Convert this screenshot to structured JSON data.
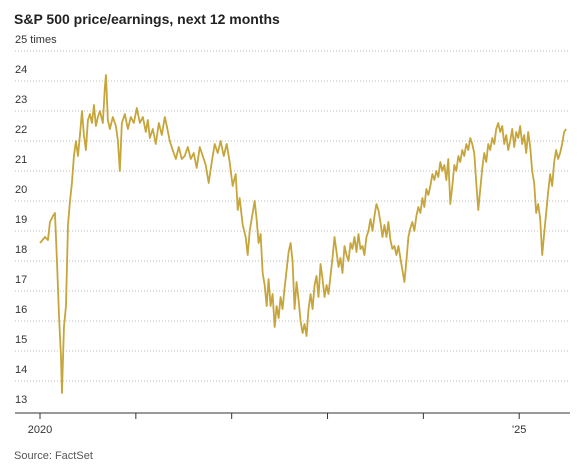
{
  "chart_data": {
    "type": "line",
    "title": "S&P 500 price/earnings, next 12 months",
    "source": "Source: FactSet",
    "xlim": [
      2020,
      2025.53
    ],
    "xticks": [
      2020,
      {
        "value": 2021,
        "label": null
      },
      {
        "value": 2022,
        "label": null
      },
      {
        "value": 2023,
        "label": null
      },
      {
        "value": 2024,
        "label": null
      },
      {
        "value": 2025,
        "label": "'25"
      }
    ],
    "ylim": [
      13,
      25
    ],
    "yticks": [
      13,
      14,
      15,
      16,
      17,
      18,
      19,
      20,
      21,
      22,
      23,
      24,
      {
        "value": 25,
        "label": "25 times"
      }
    ],
    "grid": true,
    "series": [
      {
        "name": null,
        "color": "#c6a53a",
        "x": [
          2020,
          2020.052,
          2020.083,
          2020.104,
          2020.135,
          2020.156,
          2020.177,
          2020.198,
          2020.219,
          2020.229,
          2020.25,
          2020.271,
          2020.292,
          2020.313,
          2020.333,
          2020.354,
          2020.375,
          2020.396,
          2020.417,
          2020.438,
          2020.458,
          2020.479,
          2020.5,
          2020.521,
          2020.542,
          2020.563,
          2020.583,
          2020.604,
          2020.625,
          2020.656,
          2020.677,
          2020.688,
          2020.708,
          2020.729,
          2020.76,
          2020.792,
          2020.813,
          2020.833,
          2020.854,
          2020.885,
          2020.917,
          2020.948,
          2020.979,
          2021.01,
          2021.042,
          2021.073,
          2021.104,
          2021.125,
          2021.146,
          2021.177,
          2021.208,
          2021.24,
          2021.271,
          2021.302,
          2021.323,
          2021.354,
          2021.385,
          2021.417,
          2021.448,
          2021.479,
          2021.51,
          2021.542,
          2021.573,
          2021.604,
          2021.635,
          2021.667,
          2021.698,
          2021.729,
          2021.76,
          2021.792,
          2021.823,
          2021.854,
          2021.885,
          2021.917,
          2021.948,
          2021.979,
          2022.01,
          2022.042,
          2022.063,
          2022.083,
          2022.115,
          2022.146,
          2022.167,
          2022.188,
          2022.219,
          2022.24,
          2022.26,
          2022.281,
          2022.302,
          2022.323,
          2022.344,
          2022.365,
          2022.385,
          2022.406,
          2022.427,
          2022.448,
          2022.469,
          2022.49,
          2022.51,
          2022.531,
          2022.552,
          2022.573,
          2022.594,
          2022.615,
          2022.635,
          2022.656,
          2022.677,
          2022.698,
          2022.719,
          2022.74,
          2022.76,
          2022.781,
          2022.802,
          2022.823,
          2022.844,
          2022.865,
          2022.885,
          2022.906,
          2022.927,
          2022.948,
          2022.969,
          2022.99,
          2023.01,
          2023.031,
          2023.052,
          2023.073,
          2023.094,
          2023.115,
          2023.135,
          2023.156,
          2023.177,
          2023.198,
          2023.219,
          2023.24,
          2023.26,
          2023.281,
          2023.302,
          2023.323,
          2023.344,
          2023.365,
          2023.385,
          2023.406,
          2023.427,
          2023.448,
          2023.469,
          2023.49,
          2023.51,
          2023.531,
          2023.552,
          2023.573,
          2023.594,
          2023.615,
          2023.635,
          2023.656,
          2023.677,
          2023.698,
          2023.719,
          2023.74,
          2023.76,
          2023.781,
          2023.802,
          2023.823,
          2023.844,
          2023.865,
          2023.885,
          2023.906,
          2023.927,
          2023.948,
          2023.969,
          2023.99,
          2024.01,
          2024.031,
          2024.052,
          2024.073,
          2024.094,
          2024.115,
          2024.135,
          2024.156,
          2024.177,
          2024.198,
          2024.219,
          2024.24,
          2024.26,
          2024.281,
          2024.302,
          2024.323,
          2024.344,
          2024.365,
          2024.385,
          2024.406,
          2024.427,
          2024.448,
          2024.469,
          2024.49,
          2024.51,
          2024.531,
          2024.552,
          2024.573,
          2024.594,
          2024.615,
          2024.635,
          2024.656,
          2024.677,
          2024.698,
          2024.719,
          2024.74,
          2024.76,
          2024.781,
          2024.802,
          2024.823,
          2024.844,
          2024.865,
          2024.885,
          2024.906,
          2024.927,
          2024.948,
          2024.969,
          2024.99,
          2025.01,
          2025.031,
          2025.052,
          2025.073,
          2025.094,
          2025.115,
          2025.135,
          2025.156,
          2025.177,
          2025.198,
          2025.219,
          2025.24,
          2025.26,
          2025.281,
          2025.302,
          2025.323,
          2025.344,
          2025.365,
          2025.385,
          2025.406,
          2025.427,
          2025.448,
          2025.469,
          2025.49
        ],
        "values": [
          18.6,
          18.8,
          18.7,
          19.3,
          19.5,
          19.6,
          18.0,
          16.2,
          14.8,
          13.6,
          15.8,
          16.5,
          19.2,
          20.0,
          20.6,
          21.5,
          22.0,
          21.5,
          22.2,
          23.0,
          22.2,
          21.7,
          22.7,
          22.9,
          22.6,
          23.2,
          22.5,
          22.8,
          23.0,
          22.6,
          23.8,
          24.2,
          22.7,
          22.4,
          22.8,
          22.5,
          22.0,
          21.0,
          22.6,
          22.9,
          22.4,
          22.8,
          22.6,
          23.1,
          22.6,
          22.8,
          22.3,
          22.7,
          22.1,
          22.4,
          21.9,
          22.6,
          22.2,
          22.8,
          22.5,
          22.0,
          21.7,
          21.4,
          21.8,
          21.4,
          21.5,
          21.8,
          21.4,
          21.6,
          21.1,
          21.8,
          21.5,
          21.2,
          20.6,
          21.3,
          21.9,
          21.6,
          22.0,
          21.5,
          21.9,
          21.3,
          20.5,
          20.9,
          19.7,
          20.1,
          19.2,
          18.8,
          18.2,
          19.0,
          19.6,
          20.0,
          19.4,
          18.6,
          18.9,
          17.6,
          17.2,
          16.5,
          17.4,
          16.5,
          16.9,
          15.8,
          16.5,
          16.1,
          16.8,
          16.4,
          17.1,
          17.7,
          18.3,
          18.6,
          18.0,
          16.4,
          17.3,
          16.7,
          16.0,
          15.6,
          15.9,
          15.5,
          16.4,
          16.9,
          16.4,
          17.2,
          17.5,
          16.8,
          17.9,
          17.4,
          16.8,
          17.2,
          16.9,
          17.5,
          18.1,
          18.8,
          18.3,
          17.8,
          18.1,
          17.6,
          18.5,
          18.2,
          18.0,
          18.6,
          18.4,
          18.8,
          18.3,
          18.9,
          18.4,
          18.5,
          18.2,
          18.8,
          19.0,
          19.4,
          19.0,
          19.5,
          19.9,
          19.7,
          19.3,
          18.8,
          19.2,
          18.8,
          19.3,
          18.7,
          18.4,
          18.5,
          18.2,
          18.5,
          18.1,
          17.7,
          17.3,
          18.0,
          18.8,
          19.1,
          19.3,
          19.0,
          19.5,
          19.8,
          19.6,
          20.1,
          19.8,
          20.4,
          20.2,
          20.5,
          20.9,
          20.7,
          21.0,
          20.8,
          21.3,
          21.0,
          21.2,
          20.7,
          21.4,
          19.9,
          20.5,
          21.2,
          21.0,
          21.5,
          21.3,
          21.7,
          21.5,
          21.9,
          21.7,
          22.1,
          21.9,
          21.6,
          20.6,
          19.7,
          20.4,
          21.1,
          21.6,
          21.3,
          21.9,
          21.7,
          22.1,
          21.9,
          22.4,
          22.6,
          22.3,
          22.5,
          21.9,
          22.2,
          21.7,
          22.0,
          22.4,
          21.8,
          22.3,
          22.1,
          22.5,
          21.9,
          22.2,
          21.6,
          22.3,
          21.8,
          21.0,
          20.6,
          19.6,
          19.9,
          19.4,
          18.2,
          18.9,
          19.6,
          20.3,
          20.9,
          20.5,
          21.3,
          21.7,
          21.4,
          21.6,
          21.9,
          22.3,
          22.4
        ]
      }
    ]
  }
}
